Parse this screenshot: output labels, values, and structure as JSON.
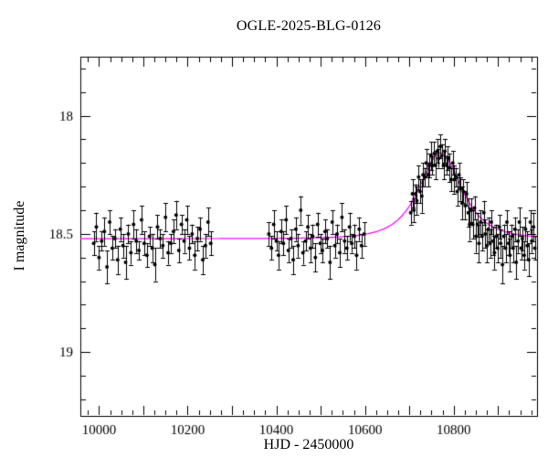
{
  "chart_data": {
    "type": "scatter",
    "title": "OGLE-2025-BLG-0126",
    "xlabel": "HJD - 2450000",
    "ylabel": "I magnitude",
    "x_range": [
      9958,
      10988
    ],
    "y_range_mag": [
      19.27,
      17.75
    ],
    "y_axis_inverted": true,
    "grid": false,
    "x_tick_labels": [
      10000,
      10200,
      10400,
      10600,
      10800
    ],
    "y_tick_values": [
      18,
      18.5,
      19
    ],
    "y_tick_labels": [
      "18",
      "18.5",
      "19"
    ],
    "x_minor_step": 25,
    "x_major_step": 100,
    "y_minor_step": 0.1,
    "y_major_step": 0.5,
    "point_color": "#000000",
    "model_color": "#ff00ff",
    "model_fit": {
      "label": "microlensing-point-lens-fit",
      "t0": 10770,
      "tE": 60,
      "u0": 0.93,
      "baseline_mag": 18.52
    },
    "points_format": [
      "hjd_minus_2450000",
      "i_magnitude",
      "error"
    ],
    "points": [
      [
        9988,
        18.54,
        0.05
      ],
      [
        9994,
        18.47,
        0.06
      ],
      [
        10000,
        18.6,
        0.05
      ],
      [
        10006,
        18.53,
        0.04
      ],
      [
        10012,
        18.49,
        0.06
      ],
      [
        10018,
        18.64,
        0.07
      ],
      [
        10024,
        18.45,
        0.05
      ],
      [
        10030,
        18.56,
        0.05
      ],
      [
        10036,
        18.52,
        0.04
      ],
      [
        10042,
        18.61,
        0.06
      ],
      [
        10048,
        18.48,
        0.05
      ],
      [
        10054,
        18.55,
        0.05
      ],
      [
        10060,
        18.62,
        0.07
      ],
      [
        10066,
        18.5,
        0.04
      ],
      [
        10072,
        18.58,
        0.05
      ],
      [
        10078,
        18.46,
        0.06
      ],
      [
        10084,
        18.53,
        0.05
      ],
      [
        10090,
        18.57,
        0.04
      ],
      [
        10096,
        18.44,
        0.06
      ],
      [
        10102,
        18.54,
        0.05
      ],
      [
        10108,
        18.59,
        0.05
      ],
      [
        10114,
        18.51,
        0.04
      ],
      [
        10120,
        18.56,
        0.06
      ],
      [
        10126,
        18.63,
        0.07
      ],
      [
        10132,
        18.47,
        0.05
      ],
      [
        10138,
        18.52,
        0.04
      ],
      [
        10144,
        18.55,
        0.05
      ],
      [
        10150,
        18.43,
        0.06
      ],
      [
        10156,
        18.58,
        0.05
      ],
      [
        10162,
        18.54,
        0.04
      ],
      [
        10168,
        18.49,
        0.05
      ],
      [
        10174,
        18.42,
        0.06
      ],
      [
        10180,
        18.57,
        0.05
      ],
      [
        10186,
        18.46,
        0.04
      ],
      [
        10192,
        18.53,
        0.05
      ],
      [
        10198,
        18.44,
        0.06
      ],
      [
        10204,
        18.56,
        0.05
      ],
      [
        10210,
        18.5,
        0.04
      ],
      [
        10216,
        18.59,
        0.06
      ],
      [
        10222,
        18.52,
        0.05
      ],
      [
        10228,
        18.48,
        0.05
      ],
      [
        10234,
        18.61,
        0.06
      ],
      [
        10240,
        18.55,
        0.05
      ],
      [
        10246,
        18.45,
        0.06
      ],
      [
        10252,
        18.54,
        0.05
      ],
      [
        10383,
        18.5,
        0.05
      ],
      [
        10389,
        18.56,
        0.05
      ],
      [
        10394,
        18.46,
        0.06
      ],
      [
        10400,
        18.53,
        0.04
      ],
      [
        10405,
        18.59,
        0.06
      ],
      [
        10411,
        18.49,
        0.05
      ],
      [
        10416,
        18.54,
        0.05
      ],
      [
        10422,
        18.44,
        0.06
      ],
      [
        10427,
        18.57,
        0.05
      ],
      [
        10433,
        18.52,
        0.04
      ],
      [
        10438,
        18.61,
        0.06
      ],
      [
        10444,
        18.48,
        0.05
      ],
      [
        10449,
        18.55,
        0.05
      ],
      [
        10455,
        18.4,
        0.06
      ],
      [
        10460,
        18.58,
        0.05
      ],
      [
        10466,
        18.53,
        0.04
      ],
      [
        10471,
        18.47,
        0.05
      ],
      [
        10477,
        18.56,
        0.06
      ],
      [
        10482,
        18.51,
        0.05
      ],
      [
        10488,
        18.6,
        0.06
      ],
      [
        10493,
        18.46,
        0.05
      ],
      [
        10499,
        18.54,
        0.04
      ],
      [
        10504,
        18.57,
        0.05
      ],
      [
        10510,
        18.49,
        0.05
      ],
      [
        10515,
        18.52,
        0.04
      ],
      [
        10521,
        18.62,
        0.07
      ],
      [
        10526,
        18.45,
        0.05
      ],
      [
        10532,
        18.55,
        0.05
      ],
      [
        10537,
        18.5,
        0.04
      ],
      [
        10543,
        18.58,
        0.06
      ],
      [
        10548,
        18.43,
        0.06
      ],
      [
        10554,
        18.53,
        0.05
      ],
      [
        10559,
        18.56,
        0.05
      ],
      [
        10565,
        18.47,
        0.06
      ],
      [
        10570,
        18.54,
        0.04
      ],
      [
        10576,
        18.51,
        0.05
      ],
      [
        10581,
        18.59,
        0.06
      ],
      [
        10587,
        18.48,
        0.05
      ],
      [
        10592,
        18.55,
        0.05
      ],
      [
        10598,
        18.5,
        0.05
      ],
      [
        10703,
        18.41,
        0.05
      ],
      [
        10707,
        18.33,
        0.06
      ],
      [
        10710,
        18.4,
        0.05
      ],
      [
        10714,
        18.33,
        0.04
      ],
      [
        10717,
        18.36,
        0.06
      ],
      [
        10721,
        18.26,
        0.05
      ],
      [
        10724,
        18.32,
        0.05
      ],
      [
        10728,
        18.34,
        0.07
      ],
      [
        10731,
        18.25,
        0.05
      ],
      [
        10735,
        18.26,
        0.04
      ],
      [
        10738,
        18.2,
        0.06
      ],
      [
        10742,
        18.25,
        0.05
      ],
      [
        10745,
        18.21,
        0.05
      ],
      [
        10749,
        18.17,
        0.06
      ],
      [
        10752,
        18.21,
        0.04
      ],
      [
        10756,
        18.16,
        0.05
      ],
      [
        10759,
        18.21,
        0.06
      ],
      [
        10763,
        18.15,
        0.05
      ],
      [
        10766,
        18.18,
        0.04
      ],
      [
        10770,
        18.13,
        0.05
      ],
      [
        10773,
        18.17,
        0.05
      ],
      [
        10777,
        18.21,
        0.06
      ],
      [
        10780,
        18.15,
        0.05
      ],
      [
        10784,
        18.21,
        0.04
      ],
      [
        10787,
        18.18,
        0.05
      ],
      [
        10791,
        18.22,
        0.06
      ],
      [
        10794,
        18.27,
        0.05
      ],
      [
        10798,
        18.2,
        0.05
      ],
      [
        10801,
        18.27,
        0.06
      ],
      [
        10805,
        18.26,
        0.04
      ],
      [
        10808,
        18.32,
        0.06
      ],
      [
        10812,
        18.25,
        0.05
      ],
      [
        10815,
        18.31,
        0.05
      ],
      [
        10819,
        18.37,
        0.07
      ],
      [
        10822,
        18.32,
        0.05
      ],
      [
        10826,
        18.38,
        0.06
      ],
      [
        10829,
        18.33,
        0.05
      ],
      [
        10833,
        18.41,
        0.06
      ],
      [
        10836,
        18.46,
        0.07
      ],
      [
        10840,
        18.4,
        0.05
      ],
      [
        10843,
        18.46,
        0.06
      ],
      [
        10847,
        18.39,
        0.05
      ],
      [
        10850,
        18.51,
        0.07
      ],
      [
        10854,
        18.46,
        0.05
      ],
      [
        10857,
        18.54,
        0.08
      ],
      [
        10861,
        18.45,
        0.05
      ],
      [
        10864,
        18.51,
        0.06
      ],
      [
        10868,
        18.41,
        0.05
      ],
      [
        10871,
        18.5,
        0.06
      ],
      [
        10875,
        18.55,
        0.07
      ],
      [
        10878,
        18.48,
        0.05
      ],
      [
        10882,
        18.54,
        0.06
      ],
      [
        10885,
        18.45,
        0.05
      ],
      [
        10889,
        18.53,
        0.06
      ],
      [
        10892,
        18.58,
        0.07
      ],
      [
        10896,
        18.51,
        0.05
      ],
      [
        10899,
        18.56,
        0.06
      ],
      [
        10903,
        18.47,
        0.05
      ],
      [
        10906,
        18.54,
        0.06
      ],
      [
        10910,
        18.63,
        0.08
      ],
      [
        10913,
        18.51,
        0.05
      ],
      [
        10917,
        18.56,
        0.06
      ],
      [
        10920,
        18.45,
        0.05
      ],
      [
        10924,
        18.54,
        0.05
      ],
      [
        10927,
        18.59,
        0.07
      ],
      [
        10931,
        18.51,
        0.05
      ],
      [
        10934,
        18.56,
        0.06
      ],
      [
        10938,
        18.48,
        0.05
      ],
      [
        10941,
        18.62,
        0.07
      ],
      [
        10945,
        18.53,
        0.05
      ],
      [
        10948,
        18.45,
        0.06
      ],
      [
        10952,
        18.56,
        0.05
      ],
      [
        10955,
        18.52,
        0.05
      ],
      [
        10959,
        18.59,
        0.06
      ],
      [
        10962,
        18.48,
        0.05
      ],
      [
        10966,
        18.55,
        0.06
      ],
      [
        10969,
        18.61,
        0.07
      ],
      [
        10973,
        18.45,
        0.05
      ],
      [
        10976,
        18.53,
        0.05
      ],
      [
        10980,
        18.47,
        0.06
      ],
      [
        10983,
        18.56,
        0.05
      ]
    ]
  }
}
